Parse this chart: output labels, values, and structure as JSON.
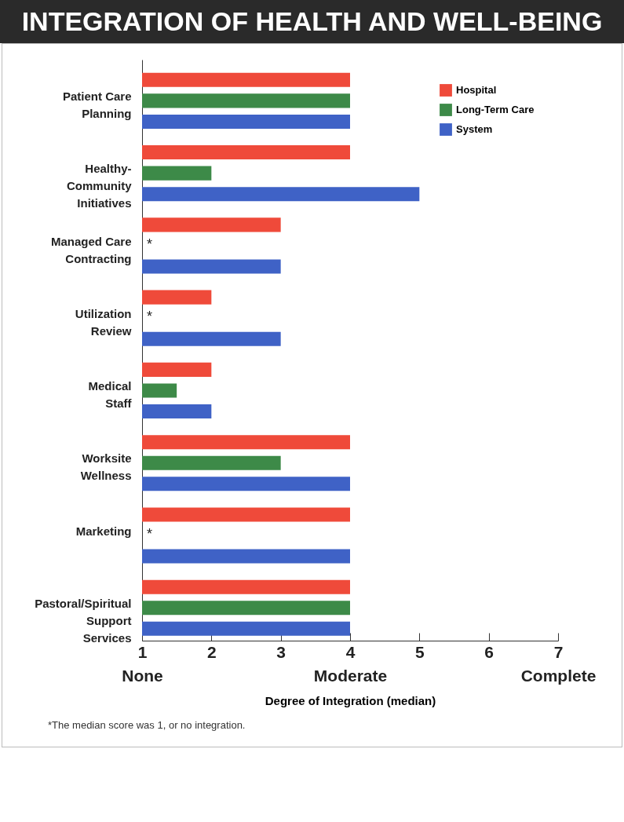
{
  "chart_data": {
    "type": "bar",
    "orientation": "horizontal",
    "title": "INTEGRATION OF HEALTH AND WELL-BEING",
    "xlabel": "Degree of Integration (median)",
    "categories": [
      "Patient Care Planning",
      "Healthy-Community Initiatives",
      "Managed Care Contracting",
      "Utilization Review",
      "Medical Staff",
      "Worksite Wellness",
      "Marketing",
      "Pastoral/Spiritual Support Services"
    ],
    "series": [
      {
        "name": "Hospital",
        "color": "#ef4a3a",
        "values": [
          4,
          4,
          3,
          2,
          2,
          4,
          4,
          4
        ]
      },
      {
        "name": "Long-Term Care",
        "color": "#3d8a48",
        "values": [
          4,
          2,
          null,
          null,
          1.5,
          3,
          null,
          4
        ],
        "value_labels": [
          null,
          null,
          "*",
          "*",
          null,
          null,
          "*",
          null
        ]
      },
      {
        "name": "System",
        "color": "#3f62c6",
        "values": [
          4,
          5,
          3,
          3,
          2,
          4,
          4,
          4
        ]
      }
    ],
    "xlim": [
      1,
      7
    ],
    "xticks": [
      {
        "value": 1,
        "label": "1\nNone"
      },
      2,
      3,
      {
        "value": 4,
        "label": "4\nModerate"
      },
      5,
      6,
      {
        "value": 7,
        "label": "7\nComplete"
      }
    ],
    "legend": "top right",
    "grid": false,
    "annotations": [
      "*The median score was 1, or no integration."
    ]
  }
}
